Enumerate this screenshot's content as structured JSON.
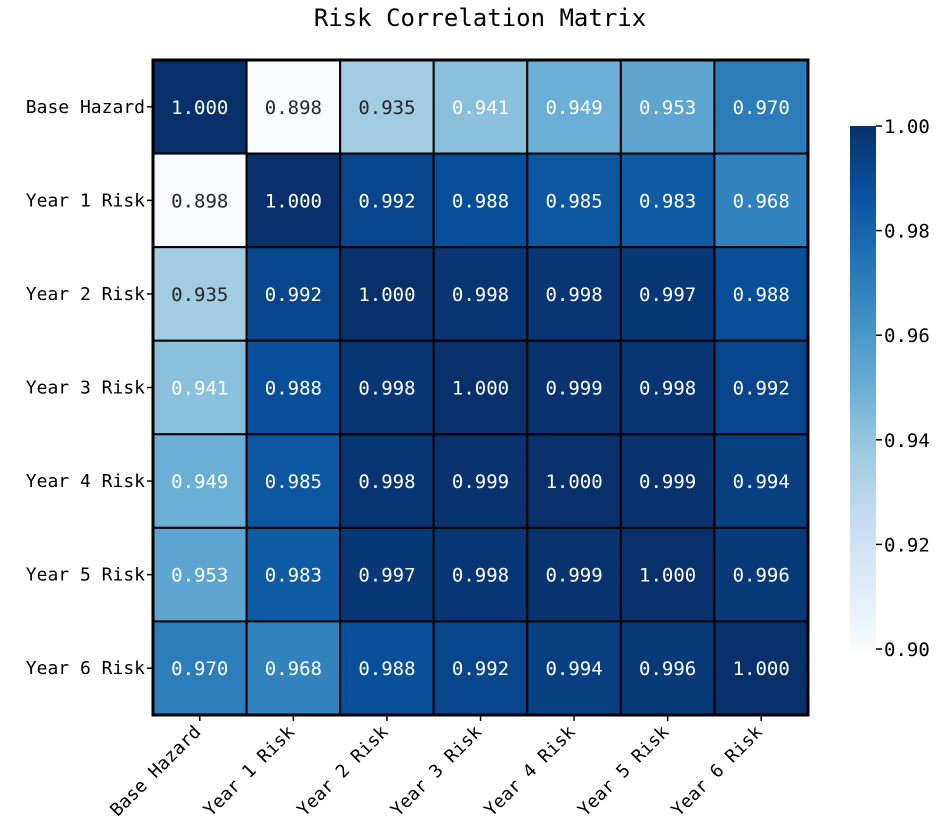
{
  "chart_data": {
    "type": "heatmap",
    "title": "Risk Correlation Matrix",
    "row_labels": [
      "Base Hazard",
      "Year 1 Risk",
      "Year 2 Risk",
      "Year 3 Risk",
      "Year 4 Risk",
      "Year 5 Risk",
      "Year 6 Risk"
    ],
    "col_labels": [
      "Base Hazard",
      "Year 1 Risk",
      "Year 2 Risk",
      "Year 3 Risk",
      "Year 4 Risk",
      "Year 5 Risk",
      "Year 6 Risk"
    ],
    "values": [
      [
        1.0,
        0.898,
        0.935,
        0.941,
        0.949,
        0.953,
        0.97
      ],
      [
        0.898,
        1.0,
        0.992,
        0.988,
        0.985,
        0.983,
        0.968
      ],
      [
        0.935,
        0.992,
        1.0,
        0.998,
        0.998,
        0.997,
        0.988
      ],
      [
        0.941,
        0.988,
        0.998,
        1.0,
        0.999,
        0.998,
        0.992
      ],
      [
        0.949,
        0.985,
        0.998,
        0.999,
        1.0,
        0.999,
        0.994
      ],
      [
        0.953,
        0.983,
        0.997,
        0.998,
        0.999,
        1.0,
        0.996
      ],
      [
        0.97,
        0.968,
        0.988,
        0.992,
        0.994,
        0.996,
        1.0
      ]
    ],
    "colormap": "Blues",
    "vmin": 0.898,
    "vmax": 1.0,
    "colorbar_ticks": [
      "0.90",
      "0.92",
      "0.94",
      "0.96",
      "0.98",
      "1.00"
    ],
    "cell_label_format": "3 decimals"
  }
}
